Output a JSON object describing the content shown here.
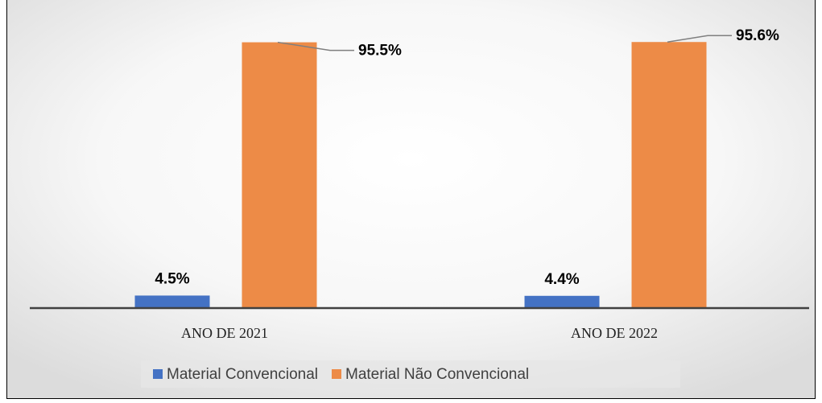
{
  "chart_data": {
    "type": "bar",
    "categories": [
      "ANO DE 2021",
      "ANO DE 2022"
    ],
    "series": [
      {
        "name": "Material Convencional",
        "color": "#4472c4",
        "values": [
          4.5,
          4.4
        ],
        "value_labels": [
          "4.5%",
          "4.4%"
        ]
      },
      {
        "name": "Material Não Convencional",
        "color": "#ed8b47",
        "values": [
          95.5,
          95.6
        ],
        "value_labels": [
          "95.5%",
          "95.6%"
        ]
      }
    ],
    "ylim": [
      0,
      100
    ]
  }
}
